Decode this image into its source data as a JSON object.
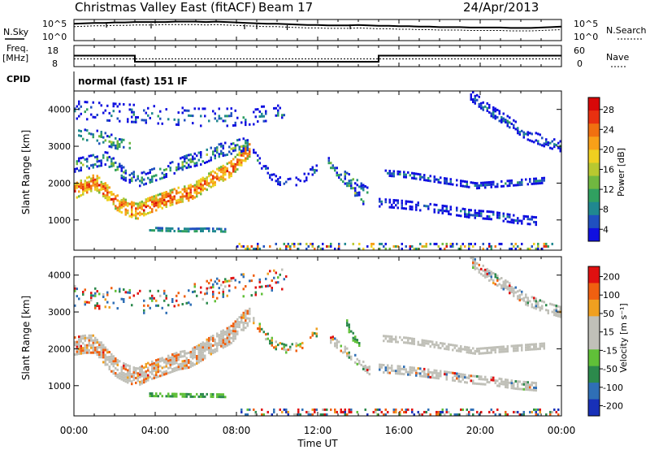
{
  "header": {
    "title": "Christmas Valley East (fitACF)",
    "beam": "Beam 17",
    "date": "24/Apr/2013"
  },
  "chart_data": [
    {
      "type": "line",
      "name_label": "N.Sky",
      "right_label": "N.Search",
      "y_ticks_left": [
        "10^5",
        "10^0"
      ],
      "y_ticks_right": [
        "10^5",
        "10^0"
      ],
      "x_hours": [
        0,
        0.5,
        1,
        1.5,
        2,
        2.5,
        3,
        3.5,
        4,
        4.5,
        5,
        5.5,
        6,
        6.5,
        7,
        7.5,
        8,
        8.5,
        9,
        9.5,
        10,
        10.5,
        11,
        11.5,
        12,
        12.5,
        13,
        13.5,
        14,
        14.5,
        15,
        15.5,
        16,
        16.5,
        17,
        17.5,
        18,
        18.5,
        19,
        19.5,
        20,
        20.5,
        21,
        21.5,
        22,
        22.5,
        23,
        23.5,
        24
      ],
      "series": [
        {
          "key": "nsky",
          "values": [
            4.0,
            4.1,
            4.2,
            4.2,
            4.3,
            4.3,
            4.4,
            4.4,
            4.4,
            4.4,
            4.5,
            4.5,
            4.5,
            4.4,
            4.5,
            4.4,
            4.3,
            4.2,
            4.1,
            4.0,
            4.0,
            3.9,
            3.8,
            3.7,
            3.7,
            3.6,
            3.6,
            3.6,
            3.7,
            3.6,
            3.5,
            3.5,
            3.4,
            3.4,
            3.3,
            3.3,
            3.2,
            3.2,
            3.2,
            3.1,
            3.1,
            3.1,
            3.1,
            3.0,
            3.0,
            3.0,
            3.1,
            3.2,
            3.3
          ]
        },
        {
          "key": "nsearch",
          "values": [
            3.3,
            3.4,
            3.5,
            3.5,
            3.6,
            3.6,
            3.7,
            3.7,
            3.7,
            3.8,
            3.8,
            3.8,
            3.8,
            3.7,
            3.8,
            3.7,
            3.6,
            3.5,
            3.4,
            3.3,
            3.3,
            3.2,
            3.1,
            3.0,
            3.0,
            2.9,
            2.9,
            2.9,
            3.0,
            2.9,
            2.8,
            2.8,
            2.7,
            2.7,
            2.6,
            2.6,
            2.5,
            2.5,
            2.5,
            2.4,
            2.4,
            2.4,
            2.4,
            2.3,
            2.3,
            2.3,
            2.4,
            2.5,
            2.6
          ]
        }
      ]
    },
    {
      "type": "line",
      "name_label": "Freq.\n[MHz]",
      "right_label": "Nave",
      "left_ticks": [
        "18",
        "8"
      ],
      "right_ticks": [
        "60",
        "0"
      ],
      "freq": {
        "x_hours": [
          0,
          3,
          3,
          15,
          15,
          24
        ],
        "values": [
          13.2,
          13.2,
          10.3,
          10.3,
          13.2,
          13.2
        ]
      },
      "nave": {
        "value": 22
      }
    },
    {
      "type": "table",
      "label": "CPID",
      "text": "normal (fast) 151 IF"
    },
    {
      "type": "heatmap",
      "quantity": "power",
      "ylabel": "Slant Range [km]",
      "y_ticks": [
        1000,
        2000,
        3000,
        4000
      ],
      "ylim": [
        180,
        4500
      ],
      "xlim": [
        0,
        24
      ],
      "colorbar": {
        "label": "Power [dB]",
        "ticks": [
          "4",
          "8",
          "12",
          "16",
          "20",
          "24",
          "28"
        ],
        "colors": [
          "#1010e0",
          "#2050c0",
          "#208890",
          "#30a060",
          "#70b840",
          "#b8c830",
          "#f0d020",
          "#f8a018",
          "#f07010",
          "#e83010",
          "#d80808"
        ]
      },
      "features": [
        {
          "h0": 0.0,
          "h1": 8.7,
          "r": [
            1800,
            1950,
            2050,
            1800,
            1500,
            1350,
            1250,
            1400,
            1500,
            1600,
            1700,
            1750,
            1900,
            2100,
            2250,
            2400,
            2700,
            3000
          ],
          "w": 420,
          "density": 0.7,
          "vals": [
            20,
            30
          ]
        },
        {
          "h0": 0.0,
          "h1": 8.6,
          "r": [
            2500,
            2600,
            2700,
            2300,
            2100,
            2250,
            2400,
            2600,
            2700,
            2900,
            3000,
            3100
          ],
          "w": 350,
          "density": 0.4,
          "vals": [
            5,
            17
          ]
        },
        {
          "h0": 0.2,
          "h1": 2.8,
          "r": [
            3400,
            3300,
            3200,
            3100,
            3050
          ],
          "w": 380,
          "density": 0.35,
          "vals": [
            8,
            17
          ]
        },
        {
          "h0": 0.0,
          "h1": 10.5,
          "r": [
            4000,
            3950,
            3900,
            3850,
            3800,
            3800,
            3850,
            3900
          ],
          "w": 500,
          "density": 0.18,
          "vals": [
            3,
            12
          ]
        },
        {
          "h0": 3.7,
          "h1": 7.5,
          "r": [
            780,
            760,
            750,
            760,
            740
          ],
          "w": 80,
          "density": 0.7,
          "vals": [
            13,
            17
          ]
        },
        {
          "h0": 8.8,
          "h1": 12.0,
          "r": [
            2800,
            2400,
            2100,
            2000,
            2050,
            2200,
            2500
          ],
          "w": 260,
          "density": 0.35,
          "vals": [
            3,
            12
          ]
        },
        {
          "h0": 12.5,
          "h1": 14.3,
          "r": [
            2600,
            2300,
            2050,
            1750,
            1500
          ],
          "w": 220,
          "density": 0.55,
          "vals": [
            4,
            18
          ]
        },
        {
          "h0": 13.3,
          "h1": 14.6,
          "r": [
            2250,
            2100,
            1900,
            1750
          ],
          "w": 180,
          "density": 0.5,
          "vals": [
            5,
            16
          ]
        },
        {
          "h0": 15.2,
          "h1": 23.2,
          "r": [
            2300,
            2250,
            2150,
            2050,
            1950,
            2000,
            2050,
            2100
          ],
          "w": 150,
          "density": 0.55,
          "vals": [
            3,
            12
          ]
        },
        {
          "h0": 15.0,
          "h1": 22.8,
          "r": [
            1500,
            1450,
            1380,
            1300,
            1200,
            1150,
            1050,
            1000
          ],
          "w": 200,
          "density": 0.5,
          "vals": [
            3,
            12
          ]
        },
        {
          "h0": 19.5,
          "h1": 24.0,
          "r": [
            4400,
            4000,
            3700,
            3350,
            3150,
            3000
          ],
          "w": 300,
          "density": 0.5,
          "vals": [
            3,
            12
          ]
        },
        {
          "h0": 8.0,
          "h1": 24.0,
          "r": [
            300,
            300,
            300,
            300
          ],
          "w": 160,
          "density": 0.3,
          "vals": [
            2,
            30
          ]
        }
      ]
    },
    {
      "type": "heatmap",
      "quantity": "velocity",
      "ylabel": "Slant Range [km]",
      "y_ticks": [
        1000,
        2000,
        3000,
        4000
      ],
      "ylim": [
        180,
        4500
      ],
      "xlim": [
        0,
        24
      ],
      "colorbar": {
        "label": "Velocity [m s⁻¹]",
        "ticks": [
          "200",
          "100",
          "50",
          "15",
          "-15",
          "-50",
          "-100",
          "-200"
        ],
        "colors": [
          "#1830b8",
          "#2f6fb6",
          "#2c8a4c",
          "#60c038",
          "#c0c0b8",
          "#c0c0b8",
          "#f0a020",
          "#f06010",
          "#e01010"
        ]
      },
      "features": [
        {
          "h0": 0.0,
          "h1": 8.7,
          "r": [
            2100,
            2150,
            2150,
            1800,
            1500,
            1350,
            1250,
            1400,
            1500,
            1600,
            1700,
            1750,
            1900,
            2100,
            2250,
            2400,
            2700,
            3000
          ],
          "w": 480,
          "density": 0.8,
          "vals": [
            -14,
            14
          ],
          "alt": [
            -80,
            -20
          ],
          "alt_p": 0.25
        },
        {
          "h0": 0.0,
          "h1": 10.5,
          "r": [
            3500,
            3400,
            3300,
            3300,
            3500,
            3700,
            3800,
            3900
          ],
          "w": 600,
          "density": 0.2,
          "vals": [
            -150,
            150
          ]
        },
        {
          "h0": 3.7,
          "h1": 7.5,
          "r": [
            780,
            770,
            760,
            760,
            750
          ],
          "w": 80,
          "density": 0.7,
          "vals": [
            20,
            45
          ]
        },
        {
          "h0": 8.8,
          "h1": 12.0,
          "r": [
            2800,
            2400,
            2100,
            2000,
            2050,
            2200,
            2500
          ],
          "w": 260,
          "density": 0.35,
          "vals": [
            -60,
            60
          ]
        },
        {
          "h0": 13.4,
          "h1": 14.1,
          "r": [
            2700,
            2300,
            2000
          ],
          "w": 200,
          "density": 0.7,
          "vals": [
            20,
            45
          ]
        },
        {
          "h0": 12.6,
          "h1": 14.6,
          "r": [
            2300,
            2000,
            1700,
            1400
          ],
          "w": 200,
          "density": 0.5,
          "vals": [
            -14,
            14
          ],
          "alt": [
            -150,
            150
          ],
          "alt_p": 0.3
        },
        {
          "h0": 15.2,
          "h1": 23.2,
          "r": [
            2300,
            2250,
            2150,
            2050,
            1950,
            2000,
            2050,
            2100
          ],
          "w": 160,
          "density": 0.7,
          "vals": [
            -14,
            14
          ]
        },
        {
          "h0": 15.0,
          "h1": 22.8,
          "r": [
            1500,
            1450,
            1380,
            1300,
            1200,
            1150,
            1050,
            1000
          ],
          "w": 200,
          "density": 0.65,
          "vals": [
            -14,
            14
          ],
          "alt": [
            -150,
            150
          ],
          "alt_p": 0.2
        },
        {
          "h0": 19.5,
          "h1": 24.0,
          "r": [
            4400,
            4000,
            3700,
            3350,
            3150,
            3000
          ],
          "w": 300,
          "density": 0.6,
          "vals": [
            -14,
            14
          ],
          "alt": [
            -150,
            150
          ],
          "alt_p": 0.2
        },
        {
          "h0": 8.0,
          "h1": 24.0,
          "r": [
            300,
            300,
            300,
            300
          ],
          "w": 160,
          "density": 0.3,
          "vals": [
            -180,
            180
          ]
        }
      ]
    }
  ],
  "x_axis": {
    "label": "Time UT",
    "tick_labels": [
      "00:00",
      "04:00",
      "08:00",
      "12:00",
      "16:00",
      "20:00",
      "00:00"
    ],
    "tick_hours": [
      0,
      4,
      8,
      12,
      16,
      20,
      24
    ]
  }
}
